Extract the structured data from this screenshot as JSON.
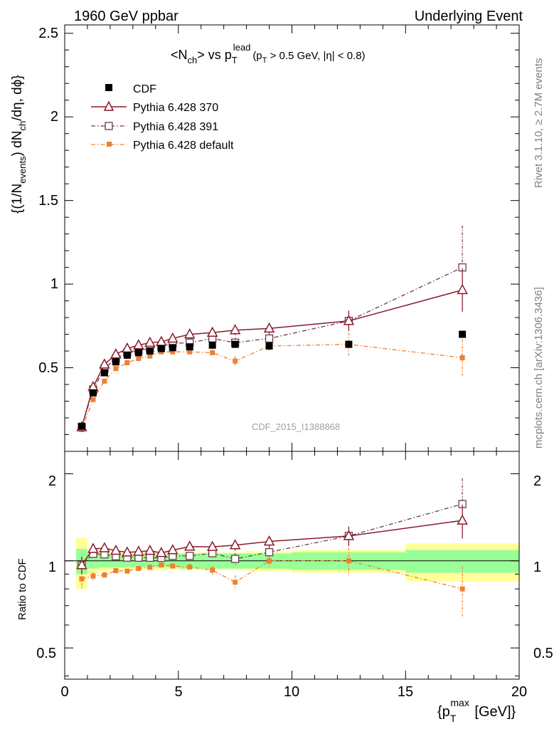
{
  "header": {
    "left": "1960 GeV ppbar",
    "right": "Underlying Event"
  },
  "side_labels": {
    "top": "Rivet 3.1.10, ≥ 2.7M events",
    "bottom": "mcplots.cern.ch [arXiv:1306.3436]"
  },
  "watermark": "CDF_2015_I1388868",
  "legend": {
    "cdf": "CDF",
    "p370": "Pythia 6.428 370",
    "p391": "Pythia 6.428 391",
    "pdef": "Pythia 6.428 default"
  },
  "title_parts": {
    "open": "<N",
    "ch": "ch",
    "vs": "> vs p",
    "T": "T",
    "lead": "lead",
    "cut_a": "(p",
    "cut_T": "T",
    "cut_b": " > 0.5 GeV, |",
    "eta": "η",
    "cut_c": "| < 0.8)"
  },
  "ylabel_parts": {
    "a": "{(1/N",
    "events": "events",
    "b": ") dN",
    "ch": "ch",
    "c": "/dη, dϕ}"
  },
  "ratio_label": "Ratio to CDF",
  "xlabel_parts": {
    "a": "{p",
    "T": "T",
    "max": "max",
    "b": " [GeV]}"
  },
  "colors": {
    "cdf": "#000000",
    "p370": "#8b1a2b",
    "p391": "#6b3a4b",
    "pdef": "#f07f30",
    "band_inner": "#99ff99",
    "band_outer": "#ffff99"
  },
  "chart_data": {
    "type": "scatter",
    "x_range": [
      0,
      20
    ],
    "main_ylim": [
      0,
      2.55
    ],
    "ratio_ylim": [
      0.39,
      2.39
    ],
    "ratio_log_scale": true,
    "main_y_ticks": [
      "0.5",
      "1",
      "1.5",
      "2",
      "2.5"
    ],
    "ratio_y_ticks": [
      "0.5",
      "1",
      "2"
    ],
    "x_ticks": [
      "0",
      "5",
      "10",
      "15",
      "20"
    ],
    "x": [
      0.75,
      1.25,
      1.75,
      2.25,
      2.75,
      3.25,
      3.75,
      4.25,
      4.75,
      5.5,
      6.5,
      7.5,
      9.0,
      12.5,
      17.5
    ],
    "x_bins": [
      [
        0.5,
        1
      ],
      [
        1,
        1.5
      ],
      [
        1.5,
        2
      ],
      [
        2,
        2.5
      ],
      [
        2.5,
        3
      ],
      [
        3,
        3.5
      ],
      [
        3.5,
        4
      ],
      [
        4,
        4.5
      ],
      [
        4.5,
        5
      ],
      [
        5,
        6
      ],
      [
        6,
        7
      ],
      [
        7,
        8
      ],
      [
        8,
        10
      ],
      [
        10,
        15
      ],
      [
        15,
        20
      ]
    ],
    "series": [
      {
        "name": "CDF",
        "key": "cdf",
        "marker": "square-filled",
        "values": [
          0.15,
          0.35,
          0.47,
          0.535,
          0.575,
          0.59,
          0.6,
          0.615,
          0.62,
          0.625,
          0.635,
          0.64,
          0.63,
          0.64,
          0.7
        ],
        "band_inner": [
          0.1,
          0.06,
          0.05,
          0.05,
          0.05,
          0.05,
          0.05,
          0.05,
          0.05,
          0.06,
          0.06,
          0.06,
          0.06,
          0.07,
          0.09
        ],
        "band_outer": [
          0.2,
          0.1,
          0.08,
          0.07,
          0.07,
          0.07,
          0.07,
          0.07,
          0.07,
          0.07,
          0.07,
          0.07,
          0.08,
          0.09,
          0.15
        ]
      },
      {
        "name": "Pythia 6.428 370",
        "key": "p370",
        "marker": "triangle-open",
        "line": "solid",
        "values": [
          0.145,
          0.385,
          0.52,
          0.58,
          0.615,
          0.635,
          0.65,
          0.655,
          0.675,
          0.7,
          0.71,
          0.725,
          0.735,
          0.78,
          0.965
        ],
        "errors": [
          0.01,
          0.01,
          0.01,
          0.01,
          0.01,
          0.01,
          0.01,
          0.01,
          0.01,
          0.015,
          0.02,
          0.03,
          0.03,
          0.06,
          0.13
        ]
      },
      {
        "name": "Pythia 6.428 391",
        "key": "p391",
        "marker": "square-open",
        "line": "dash-dot",
        "values": [
          0.145,
          0.37,
          0.495,
          0.555,
          0.59,
          0.605,
          0.615,
          0.63,
          0.645,
          0.65,
          0.675,
          0.65,
          0.675,
          0.78,
          1.1
        ],
        "errors": [
          0.01,
          0.01,
          0.01,
          0.01,
          0.01,
          0.01,
          0.01,
          0.01,
          0.01,
          0.015,
          0.02,
          0.03,
          0.03,
          0.06,
          0.25
        ]
      },
      {
        "name": "Pythia 6.428 default",
        "key": "pdef",
        "marker": "square-small-filled",
        "line": "dash-dot",
        "values": [
          0.13,
          0.31,
          0.42,
          0.495,
          0.53,
          0.555,
          0.57,
          0.595,
          0.595,
          0.595,
          0.59,
          0.54,
          0.63,
          0.64,
          0.56
        ],
        "errors": [
          0.01,
          0.01,
          0.01,
          0.01,
          0.01,
          0.01,
          0.01,
          0.01,
          0.01,
          0.015,
          0.02,
          0.03,
          0.03,
          0.07,
          0.11
        ]
      }
    ]
  }
}
